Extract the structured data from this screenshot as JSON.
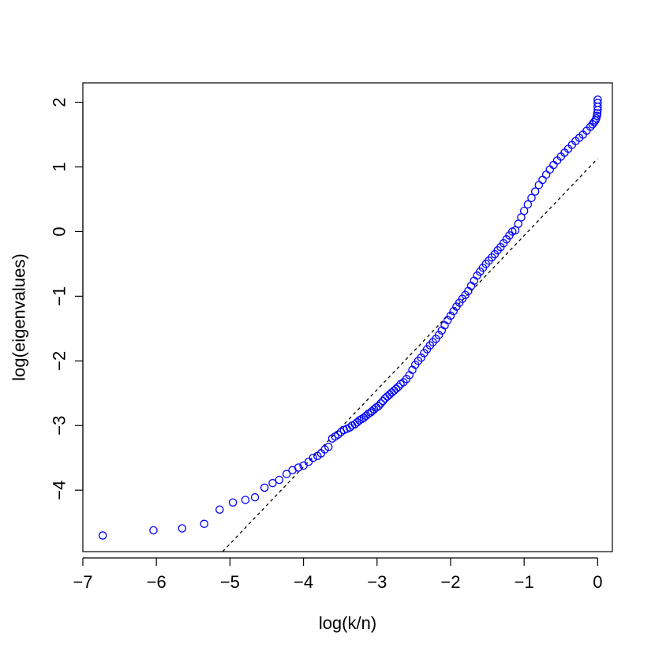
{
  "chart_data": {
    "type": "scatter",
    "title": "",
    "xlabel": "log(k/n)",
    "ylabel": "log(eigenvalues)",
    "xlim": [
      -7.0,
      0.2
    ],
    "ylim": [
      -4.95,
      2.3
    ],
    "x_ticks": [
      -7,
      -6,
      -5,
      -4,
      -3,
      -2,
      -1,
      0
    ],
    "x_tick_labels": [
      "−7",
      "−6",
      "−5",
      "−4",
      "−3",
      "−2",
      "−1",
      "0"
    ],
    "y_ticks": [
      -4,
      -3,
      -2,
      -1,
      0,
      1,
      2
    ],
    "y_tick_labels": [
      "−4",
      "−3",
      "−2",
      "−1",
      "0",
      "1",
      "2"
    ],
    "grid": false,
    "legend": "none",
    "point_color": "#0000ff",
    "line_color": "#000000",
    "series": [
      {
        "kind": "points",
        "marker": "open-circle",
        "x": [
          -6.73,
          -6.04,
          -5.65,
          -5.35,
          -5.14,
          -4.96,
          -4.79,
          -4.66,
          -4.53,
          -4.42,
          -4.33,
          -4.23,
          -4.15,
          -4.07,
          -4.0,
          -3.93,
          -3.87,
          -3.81,
          -3.76,
          -3.71,
          -3.66,
          -3.61,
          -3.57,
          -3.53,
          -3.49,
          -3.45,
          -3.41,
          -3.37,
          -3.34,
          -3.3,
          -3.27,
          -3.24,
          -3.21,
          -3.18,
          -3.15,
          -3.12,
          -3.09,
          -3.07,
          -3.04,
          -3.01,
          -2.98,
          -2.95,
          -2.92,
          -2.89,
          -2.86,
          -2.83,
          -2.8,
          -2.77,
          -2.74,
          -2.71,
          -2.68,
          -2.64,
          -2.6,
          -2.56,
          -2.52,
          -2.48,
          -2.44,
          -2.4,
          -2.36,
          -2.32,
          -2.28,
          -2.24,
          -2.2,
          -2.16,
          -2.12,
          -2.08,
          -2.04,
          -2.0,
          -1.96,
          -1.92,
          -1.88,
          -1.84,
          -1.8,
          -1.76,
          -1.72,
          -1.68,
          -1.64,
          -1.6,
          -1.56,
          -1.52,
          -1.48,
          -1.44,
          -1.4,
          -1.36,
          -1.32,
          -1.28,
          -1.24,
          -1.2,
          -1.16,
          -1.12,
          -1.08,
          -1.04,
          -1.0,
          -0.95,
          -0.9,
          -0.85,
          -0.8,
          -0.75,
          -0.7,
          -0.65,
          -0.6,
          -0.55,
          -0.5,
          -0.45,
          -0.4,
          -0.35,
          -0.3,
          -0.25,
          -0.2,
          -0.15,
          -0.1,
          -0.07,
          -0.05,
          -0.03,
          -0.02,
          -0.01,
          -0.005,
          0.0,
          0.0,
          0.0,
          0.0
        ],
        "y": [
          -4.7,
          -4.62,
          -4.59,
          -4.52,
          -4.3,
          -4.19,
          -4.15,
          -4.11,
          -3.96,
          -3.89,
          -3.84,
          -3.75,
          -3.69,
          -3.65,
          -3.62,
          -3.56,
          -3.5,
          -3.47,
          -3.43,
          -3.37,
          -3.33,
          -3.2,
          -3.17,
          -3.14,
          -3.1,
          -3.07,
          -3.05,
          -3.03,
          -3.0,
          -2.98,
          -2.95,
          -2.92,
          -2.9,
          -2.88,
          -2.85,
          -2.82,
          -2.8,
          -2.78,
          -2.75,
          -2.72,
          -2.7,
          -2.66,
          -2.62,
          -2.58,
          -2.55,
          -2.52,
          -2.49,
          -2.46,
          -2.43,
          -2.4,
          -2.36,
          -2.33,
          -2.28,
          -2.22,
          -2.14,
          -2.06,
          -2.0,
          -1.95,
          -1.88,
          -1.82,
          -1.76,
          -1.71,
          -1.66,
          -1.6,
          -1.53,
          -1.45,
          -1.37,
          -1.3,
          -1.23,
          -1.16,
          -1.1,
          -1.04,
          -0.98,
          -0.92,
          -0.84,
          -0.76,
          -0.68,
          -0.62,
          -0.56,
          -0.5,
          -0.45,
          -0.4,
          -0.35,
          -0.29,
          -0.24,
          -0.18,
          -0.12,
          -0.06,
          0.0,
          0.02,
          0.12,
          0.22,
          0.32,
          0.42,
          0.52,
          0.62,
          0.72,
          0.8,
          0.88,
          0.96,
          1.03,
          1.1,
          1.16,
          1.22,
          1.28,
          1.34,
          1.4,
          1.45,
          1.5,
          1.56,
          1.62,
          1.66,
          1.69,
          1.72,
          1.75,
          1.79,
          1.83,
          1.88,
          1.93,
          1.99,
          2.04
        ]
      },
      {
        "kind": "reference-line",
        "style": "dashed",
        "x": [
          -5.1,
          0.0
        ],
        "y": [
          -4.95,
          1.13
        ]
      }
    ]
  }
}
